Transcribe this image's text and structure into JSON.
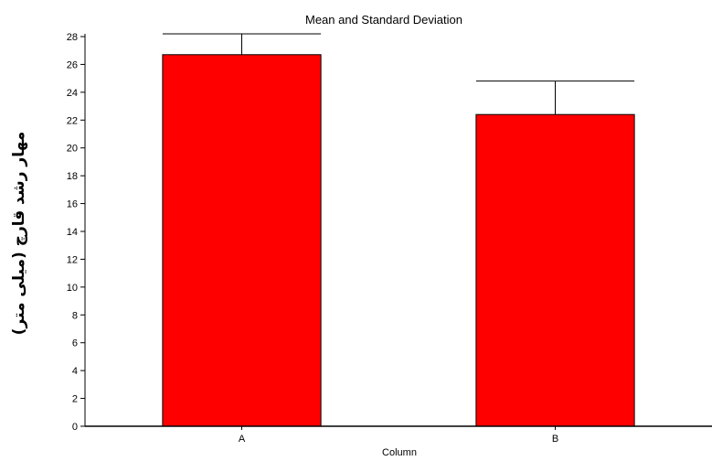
{
  "chart_data": {
    "type": "bar",
    "title": "Mean and Standard Deviation",
    "xlabel": "Column",
    "ylabel": "مهار رشد قارچ (میلی متر)",
    "categories": [
      "A",
      "B"
    ],
    "values": [
      26.7,
      22.4
    ],
    "error_bars": [
      1.5,
      2.4
    ],
    "ylim": [
      0,
      28
    ],
    "yticks": [
      0,
      2,
      4,
      6,
      8,
      10,
      12,
      14,
      16,
      18,
      20,
      22,
      24,
      26,
      28
    ],
    "bar_color": "#ff0000",
    "grid": false,
    "legend": "none"
  }
}
